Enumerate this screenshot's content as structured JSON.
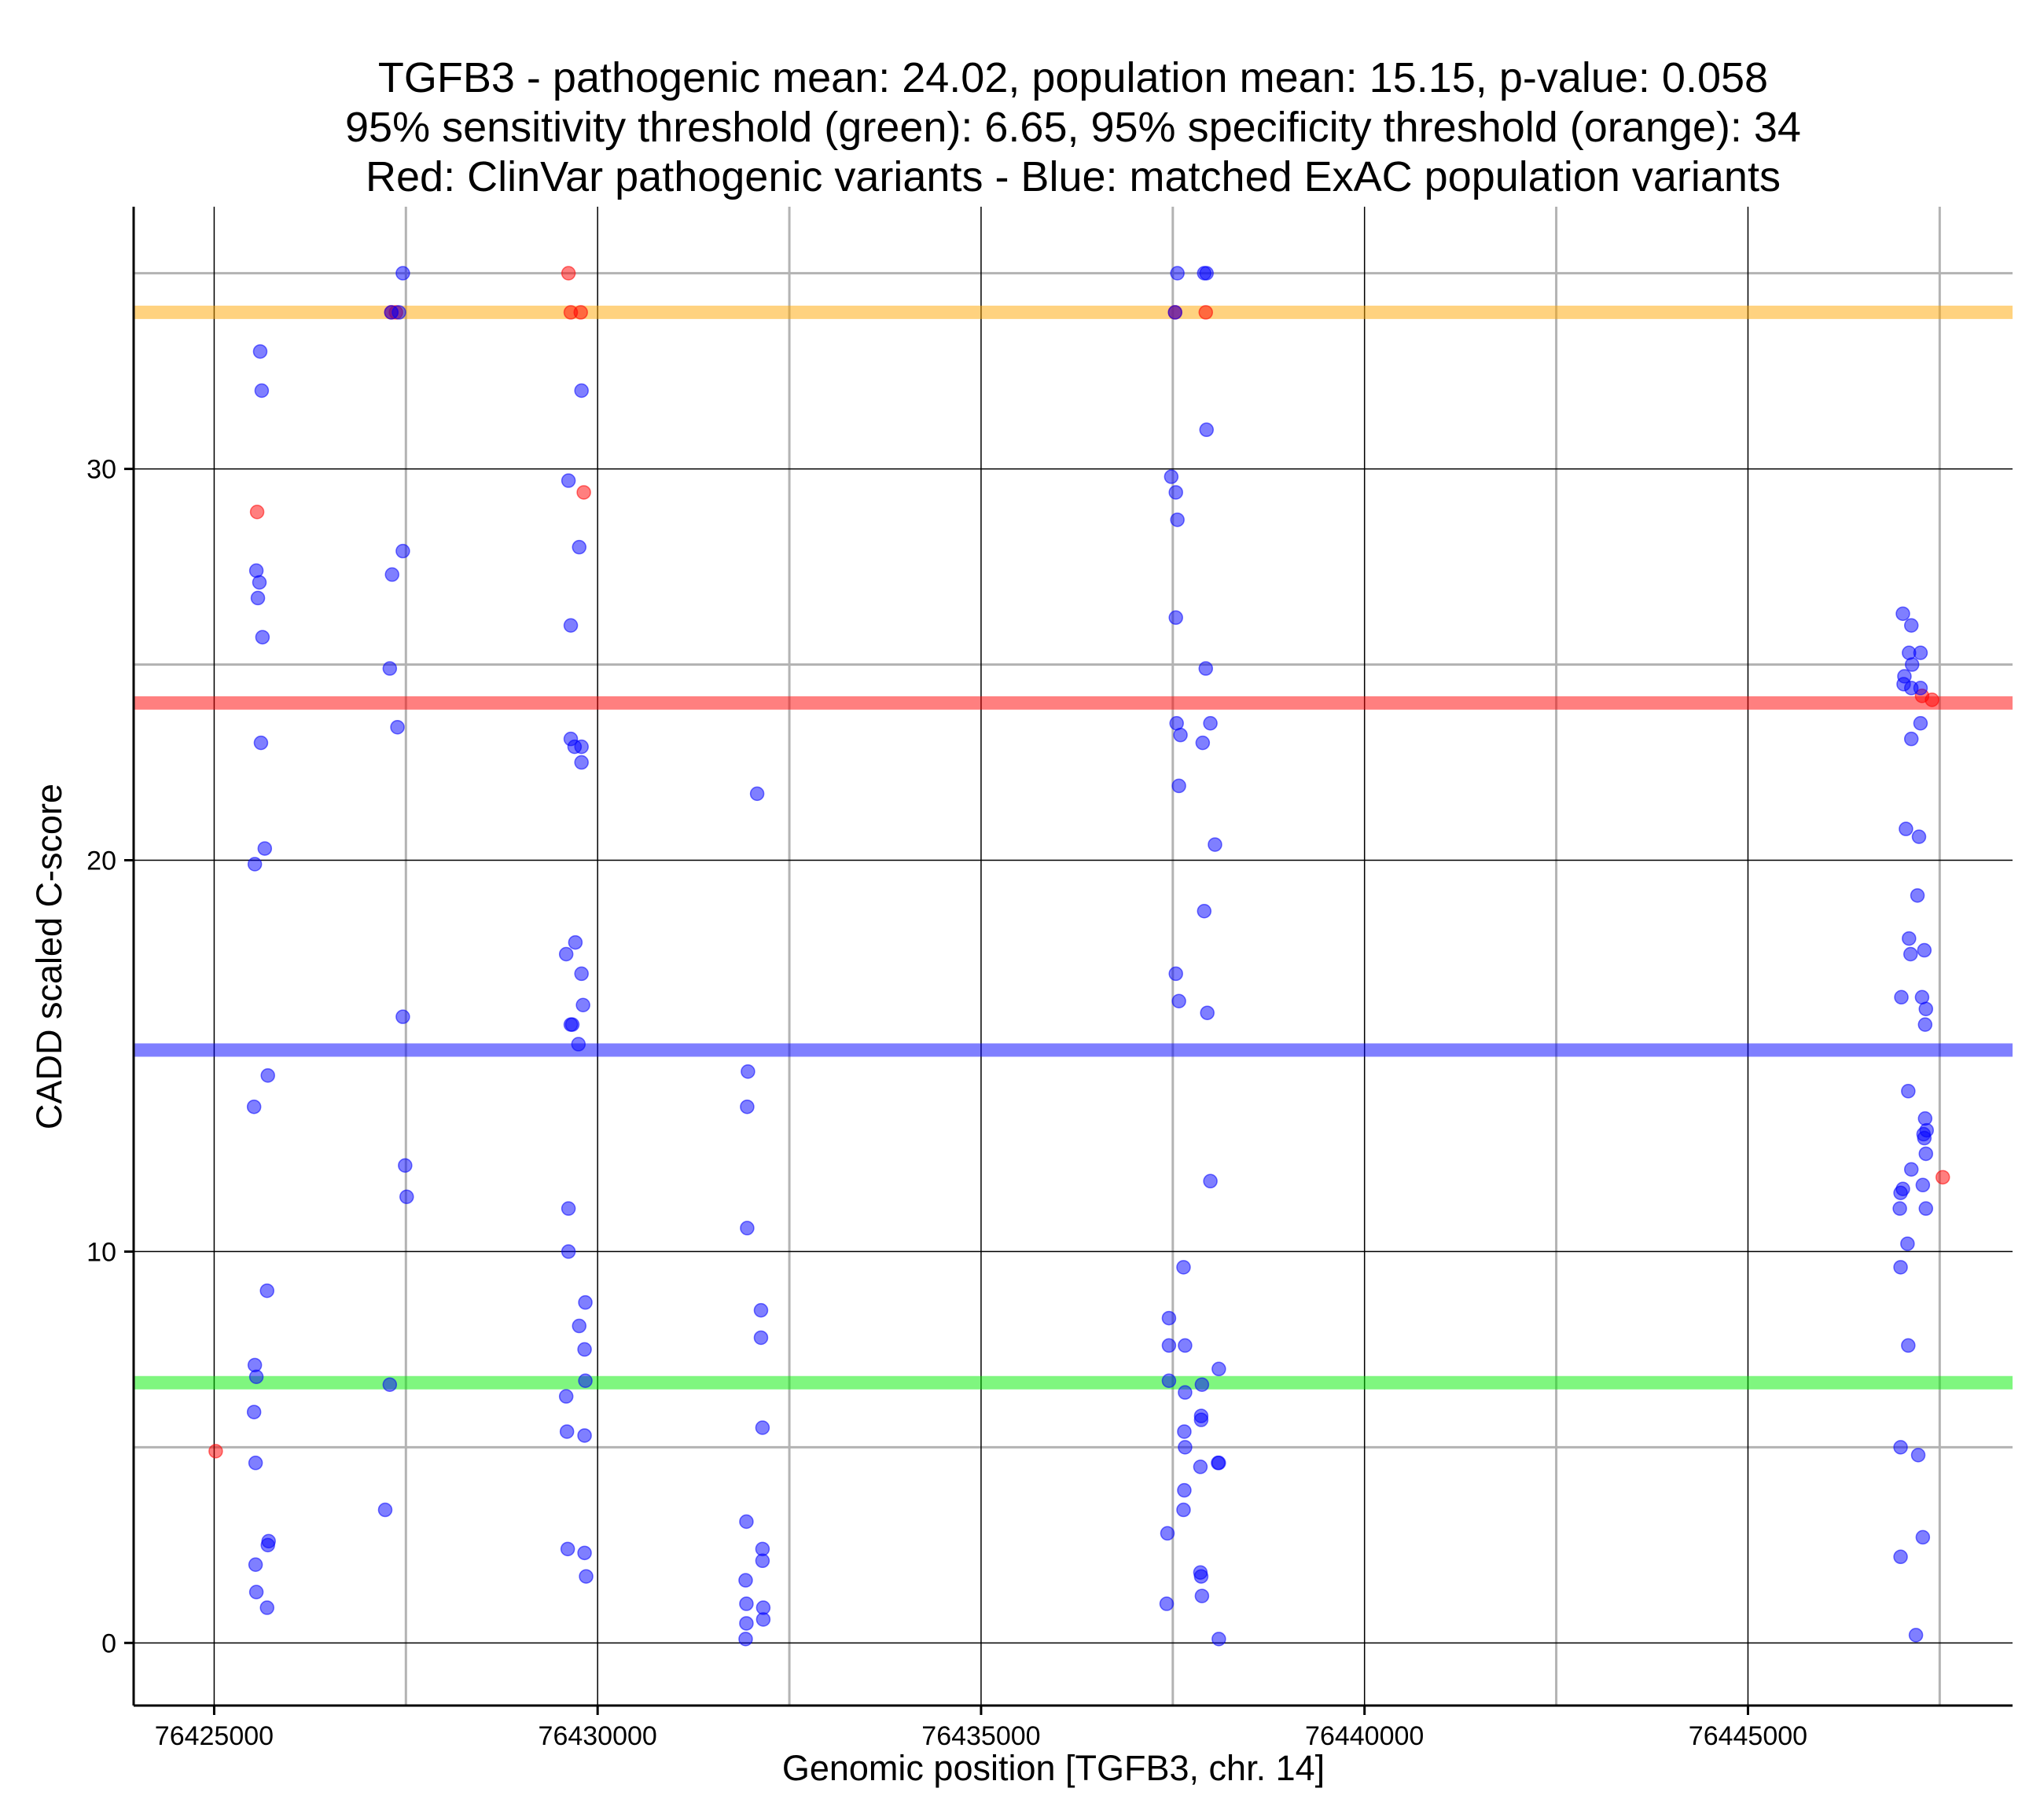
{
  "chart_data": {
    "type": "scatter",
    "title": [
      "TGFB3 - pathogenic mean: 24.02, population mean: 15.15, p-value: 0.058",
      "95% sensitivity threshold (green): 6.65, 95% specificity threshold (orange): 34",
      "Red: ClinVar pathogenic variants - Blue: matched ExAC population variants"
    ],
    "xlabel": "Genomic position [TGFB3, chr. 14]",
    "ylabel": "CADD scaled C-score",
    "xlim": [
      76423950,
      76448450
    ],
    "ylim": [
      -1.6,
      36.7
    ],
    "x_ticks": [
      76425000,
      76430000,
      76435000,
      76440000,
      76445000
    ],
    "x_tick_labels": [
      "76425000",
      "76430000",
      "76435000",
      "76440000",
      "76445000"
    ],
    "y_ticks": [
      0,
      10,
      20,
      30
    ],
    "y_tick_labels": [
      "0",
      "10",
      "20",
      "30"
    ],
    "grid_x_major": [
      76425000,
      76430000,
      76435000,
      76440000,
      76445000
    ],
    "grid_x_minor": [
      76427500,
      76432500,
      76437500,
      76442500,
      76447500
    ],
    "grid_y_major": [
      0,
      10,
      20,
      30
    ],
    "grid_y_minor": [
      5,
      25,
      35
    ],
    "reference_lines": [
      {
        "name": "pathogenic-mean",
        "value": 24.02,
        "color": "#ff0000"
      },
      {
        "name": "population-mean",
        "value": 15.15,
        "color": "#0000ff"
      },
      {
        "name": "sensitivity-threshold",
        "value": 6.65,
        "color": "#00ee00"
      },
      {
        "name": "specificity-threshold",
        "value": 34,
        "color": "#ffa500"
      }
    ],
    "series": [
      {
        "name": "ClinVar pathogenic variants",
        "color": "#ff0000",
        "points": [
          [
            76425020,
            4.9
          ],
          [
            76425560,
            28.9
          ],
          [
            76427310,
            34.0
          ],
          [
            76427370,
            34.0
          ],
          [
            76429620,
            35.0
          ],
          [
            76429650,
            34.0
          ],
          [
            76429780,
            34.0
          ],
          [
            76429820,
            29.4
          ],
          [
            76437530,
            34.0
          ],
          [
            76437930,
            34.0
          ],
          [
            76447270,
            24.2
          ],
          [
            76447400,
            24.1
          ],
          [
            76447540,
            11.9
          ]
        ]
      },
      {
        "name": "matched ExAC population variants",
        "color": "#0000ff",
        "points": [
          [
            76425600,
            33.0
          ],
          [
            76425620,
            32.0
          ],
          [
            76425550,
            27.4
          ],
          [
            76425590,
            27.1
          ],
          [
            76425570,
            26.7
          ],
          [
            76425630,
            25.7
          ],
          [
            76425610,
            23.0
          ],
          [
            76425660,
            20.3
          ],
          [
            76425530,
            19.9
          ],
          [
            76425700,
            14.5
          ],
          [
            76425520,
            13.7
          ],
          [
            76425690,
            9.0
          ],
          [
            76425530,
            7.1
          ],
          [
            76425550,
            6.8
          ],
          [
            76425520,
            5.9
          ],
          [
            76425540,
            4.6
          ],
          [
            76425710,
            2.6
          ],
          [
            76425700,
            2.5
          ],
          [
            76425540,
            2.0
          ],
          [
            76425550,
            1.3
          ],
          [
            76425690,
            0.9
          ],
          [
            76427460,
            35.0
          ],
          [
            76427310,
            34.0
          ],
          [
            76427410,
            34.0
          ],
          [
            76427460,
            27.9
          ],
          [
            76427320,
            27.3
          ],
          [
            76427290,
            24.9
          ],
          [
            76427390,
            23.4
          ],
          [
            76427460,
            16.0
          ],
          [
            76427490,
            12.2
          ],
          [
            76427510,
            11.4
          ],
          [
            76427290,
            6.6
          ],
          [
            76427230,
            3.4
          ],
          [
            76429790,
            32.0
          ],
          [
            76429620,
            29.7
          ],
          [
            76429760,
            28.0
          ],
          [
            76429650,
            26.0
          ],
          [
            76429650,
            23.1
          ],
          [
            76429700,
            22.9
          ],
          [
            76429790,
            22.9
          ],
          [
            76429790,
            22.5
          ],
          [
            76429710,
            17.9
          ],
          [
            76429590,
            17.6
          ],
          [
            76429790,
            17.1
          ],
          [
            76429810,
            16.3
          ],
          [
            76429650,
            15.8
          ],
          [
            76429670,
            15.8
          ],
          [
            76429750,
            15.3
          ],
          [
            76429620,
            11.1
          ],
          [
            76429620,
            10.0
          ],
          [
            76429840,
            8.7
          ],
          [
            76429760,
            8.1
          ],
          [
            76429830,
            7.5
          ],
          [
            76429840,
            6.7
          ],
          [
            76429590,
            6.3
          ],
          [
            76429600,
            5.4
          ],
          [
            76429830,
            5.3
          ],
          [
            76429610,
            2.4
          ],
          [
            76429830,
            2.3
          ],
          [
            76429850,
            1.7
          ],
          [
            76432080,
            21.7
          ],
          [
            76431960,
            14.6
          ],
          [
            76431950,
            13.7
          ],
          [
            76431950,
            10.6
          ],
          [
            76432130,
            8.5
          ],
          [
            76432130,
            7.8
          ],
          [
            76432150,
            5.5
          ],
          [
            76431940,
            3.1
          ],
          [
            76432150,
            2.4
          ],
          [
            76432150,
            2.1
          ],
          [
            76431930,
            1.6
          ],
          [
            76431940,
            1.0
          ],
          [
            76432160,
            0.9
          ],
          [
            76431940,
            0.5
          ],
          [
            76432160,
            0.6
          ],
          [
            76431930,
            0.1
          ],
          [
            76437560,
            35.0
          ],
          [
            76437910,
            35.0
          ],
          [
            76437940,
            35.0
          ],
          [
            76437530,
            34.0
          ],
          [
            76437940,
            31.0
          ],
          [
            76437480,
            29.8
          ],
          [
            76437540,
            29.4
          ],
          [
            76437560,
            28.7
          ],
          [
            76437540,
            26.2
          ],
          [
            76437930,
            24.9
          ],
          [
            76437550,
            23.5
          ],
          [
            76437600,
            23.2
          ],
          [
            76437990,
            23.5
          ],
          [
            76437890,
            23.0
          ],
          [
            76437580,
            21.9
          ],
          [
            76438050,
            20.4
          ],
          [
            76437910,
            18.7
          ],
          [
            76437540,
            17.1
          ],
          [
            76437580,
            16.4
          ],
          [
            76437950,
            16.1
          ],
          [
            76437990,
            11.8
          ],
          [
            76437640,
            9.6
          ],
          [
            76437450,
            8.3
          ],
          [
            76437450,
            7.6
          ],
          [
            76437660,
            7.6
          ],
          [
            76438100,
            7.0
          ],
          [
            76437450,
            6.7
          ],
          [
            76437880,
            6.6
          ],
          [
            76437660,
            6.4
          ],
          [
            76437870,
            5.8
          ],
          [
            76437870,
            5.7
          ],
          [
            76437650,
            5.4
          ],
          [
            76437660,
            5.0
          ],
          [
            76438100,
            4.6
          ],
          [
            76438090,
            4.6
          ],
          [
            76437860,
            4.5
          ],
          [
            76437650,
            3.9
          ],
          [
            76437640,
            3.4
          ],
          [
            76437430,
            2.8
          ],
          [
            76437860,
            1.8
          ],
          [
            76437870,
            1.7
          ],
          [
            76437880,
            1.2
          ],
          [
            76437420,
            1.0
          ],
          [
            76438100,
            0.1
          ],
          [
            76447020,
            26.3
          ],
          [
            76447130,
            26.0
          ],
          [
            76447100,
            25.3
          ],
          [
            76447250,
            25.3
          ],
          [
            76447140,
            25.0
          ],
          [
            76447040,
            24.7
          ],
          [
            76447030,
            24.5
          ],
          [
            76447250,
            24.4
          ],
          [
            76447130,
            24.4
          ],
          [
            76447130,
            23.1
          ],
          [
            76447250,
            23.5
          ],
          [
            76447060,
            20.8
          ],
          [
            76447230,
            20.6
          ],
          [
            76447210,
            19.1
          ],
          [
            76447100,
            18.0
          ],
          [
            76447120,
            17.6
          ],
          [
            76447300,
            17.7
          ],
          [
            76447000,
            16.5
          ],
          [
            76447270,
            16.5
          ],
          [
            76447320,
            16.2
          ],
          [
            76447310,
            15.8
          ],
          [
            76447090,
            14.1
          ],
          [
            76447310,
            13.4
          ],
          [
            76447290,
            13.0
          ],
          [
            76447330,
            13.1
          ],
          [
            76447300,
            12.9
          ],
          [
            76447320,
            12.5
          ],
          [
            76447130,
            12.1
          ],
          [
            76447280,
            11.7
          ],
          [
            76446990,
            11.5
          ],
          [
            76447020,
            11.6
          ],
          [
            76446980,
            11.1
          ],
          [
            76447320,
            11.1
          ],
          [
            76447080,
            10.2
          ],
          [
            76446990,
            9.6
          ],
          [
            76447090,
            7.6
          ],
          [
            76446990,
            5.0
          ],
          [
            76447220,
            4.8
          ],
          [
            76447280,
            2.7
          ],
          [
            76446990,
            2.2
          ],
          [
            76447190,
            0.2
          ]
        ]
      }
    ]
  }
}
